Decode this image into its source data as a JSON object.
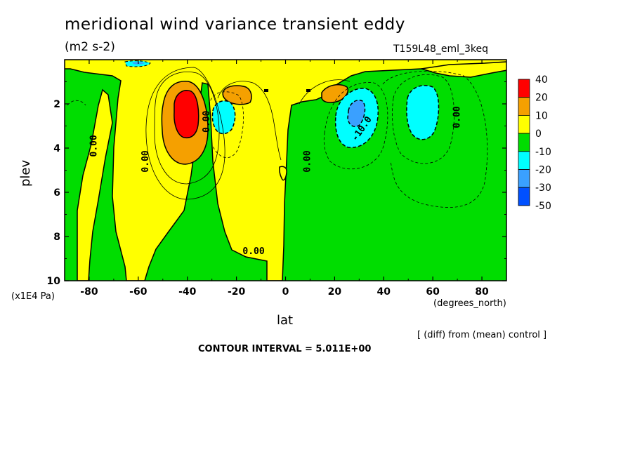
{
  "header": {
    "title": "meridional wind variance transient eddy",
    "units": "(m2 s-2)",
    "run": "T159L48_eml_3keq"
  },
  "footer": {
    "diff_note": "[ (diff) from (mean) control ]",
    "contour_interval": "CONTOUR INTERVAL = 5.011E+00"
  },
  "chart_data": {
    "type": "contour",
    "xlabel": "lat",
    "x_unit": "(degrees_north)",
    "ylabel": "plev",
    "y_unit": "(x1E4 Pa)",
    "xlim": [
      -90,
      90
    ],
    "ylim": [
      10,
      0
    ],
    "x_ticks": [
      -80,
      -60,
      -40,
      -20,
      0,
      20,
      40,
      60,
      80
    ],
    "y_ticks": [
      2,
      4,
      6,
      8,
      10
    ],
    "x_tick_labels": [
      "-80",
      "-60",
      "-40",
      "-20",
      "0",
      "20",
      "40",
      "60",
      "80"
    ],
    "y_tick_labels": [
      "2",
      "4",
      "6",
      "8",
      "10"
    ],
    "legend": {
      "labels": [
        "40",
        "20",
        "10",
        "0",
        "-10",
        "-20",
        "-30",
        "-50"
      ],
      "colors": [
        "#ff0000",
        "#f5a000",
        "#ffff00",
        "#00dd00",
        "#00ffff",
        "#3aa0ff",
        "#0050ff"
      ]
    },
    "fill_levels": {
      "red": 20,
      "orange": 10,
      "yellow": 0,
      "green": -10,
      "cyan": -20,
      "blue": -30
    },
    "features": [
      {
        "type": "max",
        "lat": -40,
        "plev": 2.5,
        "level": "red"
      },
      {
        "type": "max",
        "lat": -20,
        "plev": 1.5,
        "level": "orange"
      },
      {
        "type": "max",
        "lat": 22,
        "plev": 1.5,
        "level": "orange"
      },
      {
        "type": "min",
        "lat": -26,
        "plev": 2.6,
        "level": "cyan"
      },
      {
        "type": "min",
        "lat": 29,
        "plev": 2.5,
        "level": "blue"
      },
      {
        "type": "min",
        "lat": 56,
        "plev": 2.6,
        "level": "cyan"
      }
    ],
    "contour_labels": [
      {
        "text": "0.00",
        "lat": -77,
        "plev": 3.9
      },
      {
        "text": "0.00",
        "lat": -56,
        "plev": 4.6
      },
      {
        "text": "0.00",
        "lat": -31,
        "plev": 2.8
      },
      {
        "text": "0.00",
        "lat": -13,
        "plev": 8.8
      },
      {
        "text": "0.00",
        "lat": 10,
        "plev": 4.6
      },
      {
        "text": "-10.0",
        "lat": 32,
        "plev": 3.2
      },
      {
        "text": "0.00",
        "lat": 71,
        "plev": 2.6
      }
    ]
  }
}
